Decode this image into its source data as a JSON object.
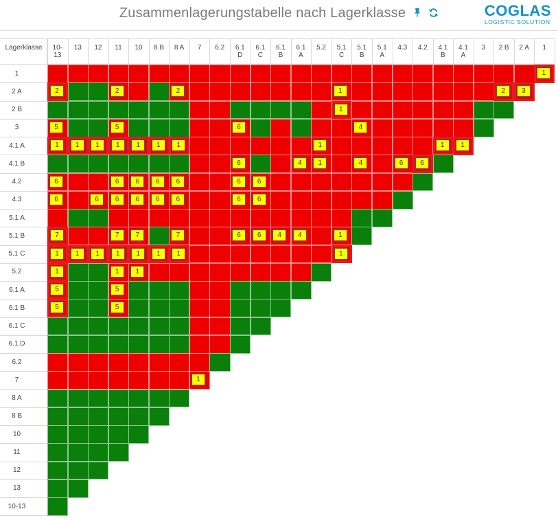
{
  "header": {
    "title": "Zusammenlagerungstabelle nach Lagerklasse",
    "pin_icon": "pin-icon",
    "refresh_icon": "refresh-icon",
    "logo_main": "COGLAS",
    "logo_sub": "LOGISTIC SOLUTION"
  },
  "table": {
    "corner_label": "Lagerklasse",
    "columns": [
      "10-13",
      "13",
      "12",
      "11",
      "10",
      "8 B",
      "8 A",
      "7",
      "6.2",
      "6.1 D",
      "6.1 C",
      "6.1 B",
      "6.1 A",
      "5.2",
      "5.1 C",
      "5.1 B",
      "5.1 A",
      "4.3",
      "4.2",
      "4.1 B",
      "4.1 A",
      "3",
      "2 B",
      "2 A",
      "1"
    ],
    "rows": [
      "1",
      "2 A",
      "2 B",
      "3",
      "4.1 A",
      "4.1 B",
      "4.2",
      "4.3",
      "5.1 A",
      "5.1 B",
      "5.1 C",
      "5.2",
      "6.1 A",
      "6.1 B",
      "6.1 C",
      "6.1 D",
      "6.2",
      "7",
      "8 A",
      "8 B",
      "10",
      "11",
      "12",
      "13",
      "10-13"
    ],
    "cells": [
      "RRRRRRRRRRRRRRRRRRRRRRRRR",
      "RGGRRGRRRRRRRRRRRRRRRRRR",
      "GGGGGGGRRGGGGRRRRRRRRGG",
      "RGGRGGGRRRGRGRRRRRRRRG",
      "RRRRRRRRRRRRRRRRRRRRR",
      "GGGGGGGRRRGRRRRRRRRG",
      "RRRRRRRRRRRRRRRRRRG",
      "RRRRRRRRRRRRRRRRRG",
      "RGGRRRRRRRRRRRRGG",
      "RRRRRGRRRRRRRRRG",
      "RRRRRRRRRRRRRRR",
      "RGGRRRRRRRRRRG",
      "RGGRGGGRRGGGG",
      "RGGRGGGRRGGG",
      "GGGGGGGRRGG",
      "GGGGGGGRRG",
      "RRRRRRRRG",
      "RRRRRRRR",
      "GGGGGGG",
      "GGGGGG",
      "GGGGG",
      "GGGG",
      "GGG",
      "GG",
      "G"
    ],
    "badges": [
      {
        "row": 0,
        "col": 24,
        "text": "1"
      },
      {
        "row": 1,
        "col": 0,
        "text": "2"
      },
      {
        "row": 1,
        "col": 3,
        "text": "2"
      },
      {
        "row": 1,
        "col": 6,
        "text": "2"
      },
      {
        "row": 1,
        "col": 14,
        "text": "1"
      },
      {
        "row": 1,
        "col": 22,
        "text": "2"
      },
      {
        "row": 1,
        "col": 23,
        "text": "3"
      },
      {
        "row": 2,
        "col": 14,
        "text": "1"
      },
      {
        "row": 3,
        "col": 0,
        "text": "5"
      },
      {
        "row": 3,
        "col": 3,
        "text": "5"
      },
      {
        "row": 3,
        "col": 9,
        "text": "6"
      },
      {
        "row": 3,
        "col": 15,
        "text": "4"
      },
      {
        "row": 4,
        "col": 0,
        "text": "1"
      },
      {
        "row": 4,
        "col": 1,
        "text": "1"
      },
      {
        "row": 4,
        "col": 2,
        "text": "1"
      },
      {
        "row": 4,
        "col": 3,
        "text": "1"
      },
      {
        "row": 4,
        "col": 4,
        "text": "1"
      },
      {
        "row": 4,
        "col": 5,
        "text": "1"
      },
      {
        "row": 4,
        "col": 6,
        "text": "1"
      },
      {
        "row": 4,
        "col": 13,
        "text": "1"
      },
      {
        "row": 4,
        "col": 19,
        "text": "1"
      },
      {
        "row": 4,
        "col": 20,
        "text": "1"
      },
      {
        "row": 5,
        "col": 9,
        "text": "6"
      },
      {
        "row": 5,
        "col": 12,
        "text": "4"
      },
      {
        "row": 5,
        "col": 13,
        "text": "1"
      },
      {
        "row": 5,
        "col": 15,
        "text": "4"
      },
      {
        "row": 5,
        "col": 17,
        "text": "6"
      },
      {
        "row": 5,
        "col": 18,
        "text": "6"
      },
      {
        "row": 6,
        "col": 0,
        "text": "6"
      },
      {
        "row": 6,
        "col": 3,
        "text": "6"
      },
      {
        "row": 6,
        "col": 4,
        "text": "6"
      },
      {
        "row": 6,
        "col": 5,
        "text": "6"
      },
      {
        "row": 6,
        "col": 6,
        "text": "6"
      },
      {
        "row": 6,
        "col": 9,
        "text": "6"
      },
      {
        "row": 6,
        "col": 10,
        "text": "6"
      },
      {
        "row": 7,
        "col": 0,
        "text": "6"
      },
      {
        "row": 7,
        "col": 2,
        "text": "6"
      },
      {
        "row": 7,
        "col": 3,
        "text": "6"
      },
      {
        "row": 7,
        "col": 4,
        "text": "6"
      },
      {
        "row": 7,
        "col": 5,
        "text": "6"
      },
      {
        "row": 7,
        "col": 6,
        "text": "6"
      },
      {
        "row": 7,
        "col": 9,
        "text": "6"
      },
      {
        "row": 7,
        "col": 10,
        "text": "6"
      },
      {
        "row": 9,
        "col": 0,
        "text": "7"
      },
      {
        "row": 9,
        "col": 3,
        "text": "7"
      },
      {
        "row": 9,
        "col": 4,
        "text": "7"
      },
      {
        "row": 9,
        "col": 6,
        "text": "7"
      },
      {
        "row": 9,
        "col": 9,
        "text": "6"
      },
      {
        "row": 9,
        "col": 10,
        "text": "6"
      },
      {
        "row": 9,
        "col": 11,
        "text": "4"
      },
      {
        "row": 9,
        "col": 12,
        "text": "4"
      },
      {
        "row": 9,
        "col": 14,
        "text": "1"
      },
      {
        "row": 10,
        "col": 0,
        "text": "1"
      },
      {
        "row": 10,
        "col": 1,
        "text": "1"
      },
      {
        "row": 10,
        "col": 2,
        "text": "1"
      },
      {
        "row": 10,
        "col": 3,
        "text": "1"
      },
      {
        "row": 10,
        "col": 4,
        "text": "1"
      },
      {
        "row": 10,
        "col": 5,
        "text": "1"
      },
      {
        "row": 10,
        "col": 6,
        "text": "1"
      },
      {
        "row": 10,
        "col": 14,
        "text": "1"
      },
      {
        "row": 11,
        "col": 0,
        "text": "1"
      },
      {
        "row": 11,
        "col": 3,
        "text": "1"
      },
      {
        "row": 11,
        "col": 4,
        "text": "1"
      },
      {
        "row": 12,
        "col": 0,
        "text": "5"
      },
      {
        "row": 12,
        "col": 3,
        "text": "5"
      },
      {
        "row": 13,
        "col": 0,
        "text": "5"
      },
      {
        "row": 13,
        "col": 3,
        "text": "5"
      },
      {
        "row": 17,
        "col": 7,
        "text": "1"
      }
    ],
    "outlined": [
      {
        "row": 0,
        "col": 24
      },
      {
        "row": 1,
        "col": 0
      },
      {
        "row": 1,
        "col": 22
      },
      {
        "row": 1,
        "col": 23
      },
      {
        "row": 2,
        "col": 14
      },
      {
        "row": 4,
        "col": 0
      },
      {
        "row": 4,
        "col": 1
      },
      {
        "row": 4,
        "col": 2
      },
      {
        "row": 4,
        "col": 3
      },
      {
        "row": 4,
        "col": 4
      },
      {
        "row": 4,
        "col": 5
      },
      {
        "row": 4,
        "col": 6
      },
      {
        "row": 4,
        "col": 19
      },
      {
        "row": 4,
        "col": 20
      },
      {
        "row": 5,
        "col": 18
      },
      {
        "row": 9,
        "col": 0
      },
      {
        "row": 10,
        "col": 0
      },
      {
        "row": 10,
        "col": 1
      },
      {
        "row": 10,
        "col": 2
      },
      {
        "row": 10,
        "col": 3
      },
      {
        "row": 10,
        "col": 4
      },
      {
        "row": 10,
        "col": 5
      },
      {
        "row": 10,
        "col": 6
      },
      {
        "row": 10,
        "col": 14
      },
      {
        "row": 11,
        "col": 0
      },
      {
        "row": 12,
        "col": 0
      },
      {
        "row": 13,
        "col": 0
      }
    ]
  }
}
